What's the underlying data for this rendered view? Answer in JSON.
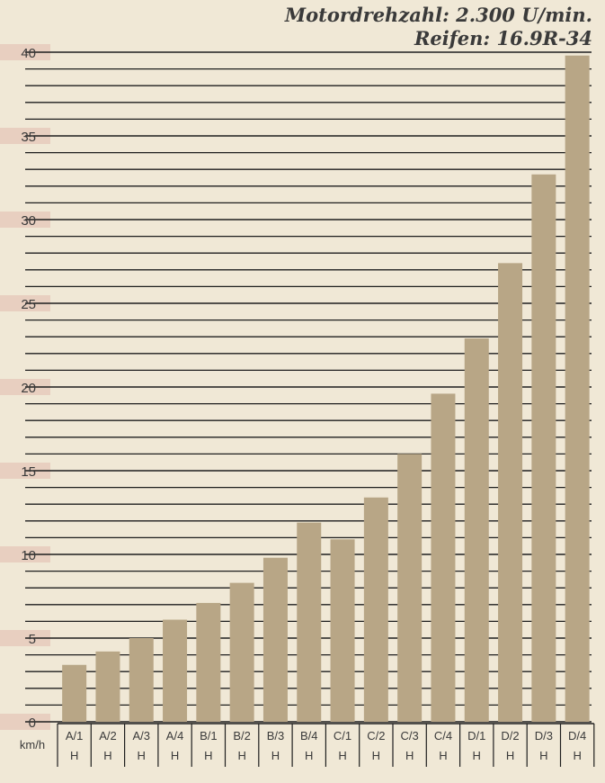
{
  "header": {
    "line1": "Motordrehzahl: 2.300 U/min.",
    "line2": "Reifen: 16.9R-34"
  },
  "colors": {
    "background": "#F0E8D6",
    "bar": "#B8A686",
    "gridline": "#1E1E1E",
    "tick_band": "#E8CFC0",
    "text": "#3A3A3A"
  },
  "chart_data": {
    "type": "bar",
    "title": "",
    "unit_label": "km/h",
    "ylabel": "",
    "xlabel": "",
    "ylim": [
      0,
      40
    ],
    "yticks": [
      "0",
      "5",
      "10",
      "15",
      "20",
      "25",
      "30",
      "35",
      "40"
    ],
    "grid": true,
    "categories": [
      "A/1",
      "A/2",
      "A/3",
      "A/4",
      "B/1",
      "B/2",
      "B/3",
      "B/4",
      "C/1",
      "C/2",
      "C/3",
      "C/4",
      "D/1",
      "D/2",
      "D/3",
      "D/4"
    ],
    "sublabels": [
      "H",
      "H",
      "H",
      "H",
      "H",
      "H",
      "H",
      "H",
      "H",
      "H",
      "H",
      "H",
      "H",
      "H",
      "H",
      "H"
    ],
    "values": [
      3.4,
      4.2,
      5.0,
      6.1,
      7.1,
      8.3,
      9.8,
      11.9,
      10.9,
      13.4,
      16.0,
      19.6,
      22.9,
      27.4,
      32.7,
      39.8
    ]
  }
}
